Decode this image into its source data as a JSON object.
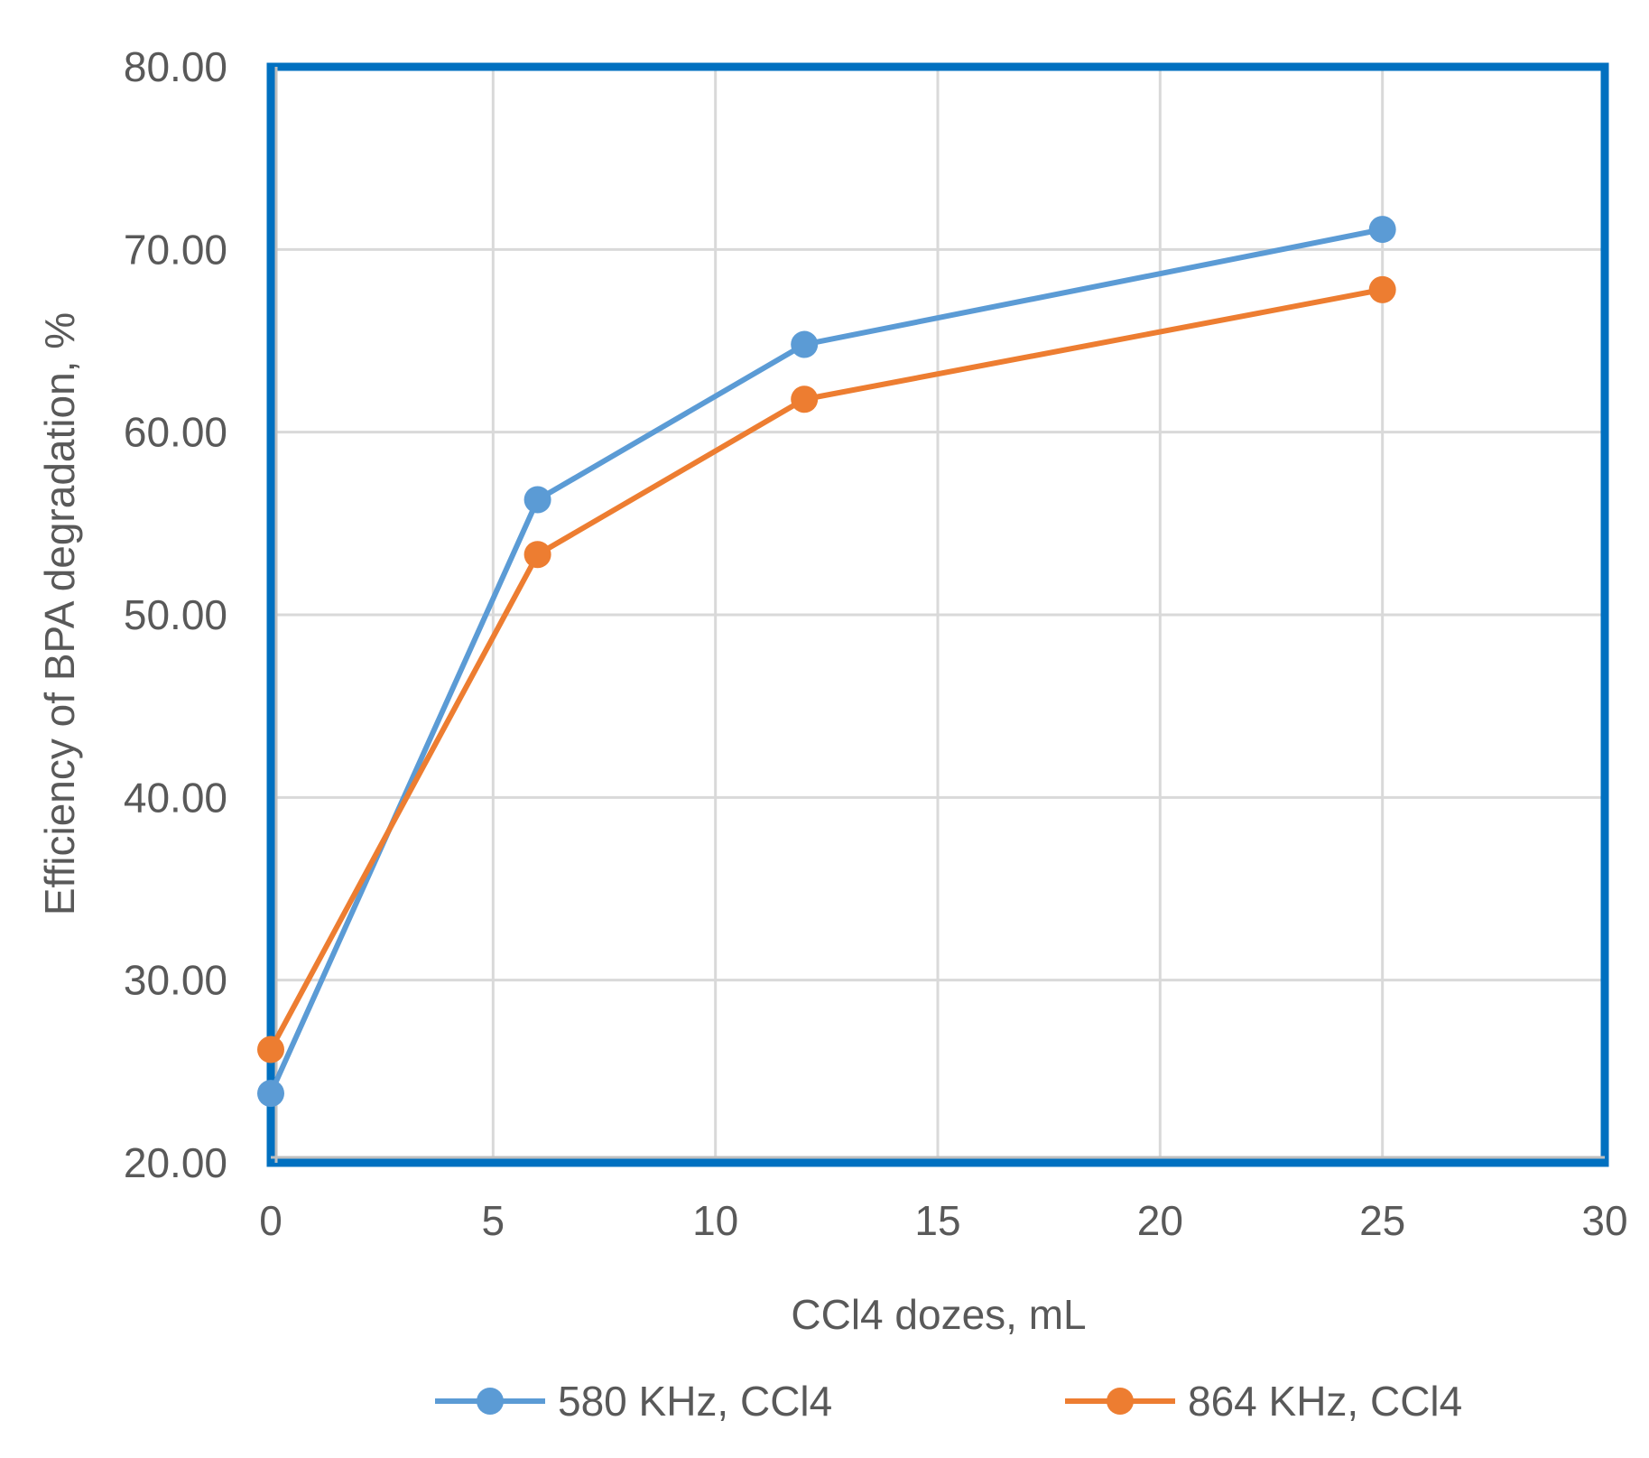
{
  "chart_data": {
    "type": "line",
    "title": "",
    "xlabel": "CCl4 dozes, mL",
    "ylabel": "Efficiency of BPA degradation, %",
    "xlim": [
      0,
      30
    ],
    "ylim": [
      20,
      80
    ],
    "x_ticks": [
      "0",
      "5",
      "10",
      "15",
      "20",
      "25",
      "30"
    ],
    "y_ticks": [
      "20.00",
      "30.00",
      "40.00",
      "50.00",
      "60.00",
      "70.00",
      "80.00"
    ],
    "grid": true,
    "legend_position": "bottom",
    "series": [
      {
        "name": "580 KHz, CCl4",
        "color": "#5b9bd5",
        "x": [
          0,
          6,
          12,
          25
        ],
        "y": [
          23.8,
          56.3,
          64.8,
          71.1
        ]
      },
      {
        "name": "864 KHz, CCl4",
        "color": "#ed7d31",
        "x": [
          0,
          6,
          12,
          25
        ],
        "y": [
          26.2,
          53.3,
          61.8,
          67.8
        ]
      }
    ],
    "frame_color": "#0070c0",
    "grid_color": "#d9d9d9"
  }
}
